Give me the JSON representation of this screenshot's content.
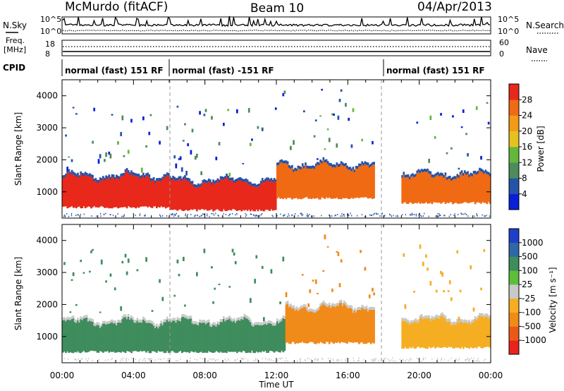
{
  "title": {
    "station": "McMurdo (fitACF)",
    "beam": "Beam 10",
    "date": "04/Apr/2013"
  },
  "panel_labels": {
    "nsky": "N.Sky",
    "nsearch": "N.Search",
    "freq_line1": "Freq.",
    "freq_line2": "[MHz]",
    "nave": "Nave",
    "cpid": "CPID",
    "noise_left_ticks": [
      "10^5",
      "10^0"
    ],
    "noise_right_ticks": [
      "10^5",
      "10^0"
    ],
    "freq_ticks": [
      "18",
      "8"
    ],
    "nave_ticks": [
      "60",
      "0"
    ]
  },
  "cpid_segments": [
    {
      "label": "normal (fast) 151 RF",
      "start_hour": 0,
      "end_hour": 6
    },
    {
      "label": "normal (fast) -151 RF",
      "start_hour": 6,
      "end_hour": 18
    },
    {
      "label": "normal (fast) 151 RF",
      "start_hour": 18,
      "end_hour": 24
    }
  ],
  "time_axis": {
    "label": "Time UT",
    "ticks": [
      "00:00",
      "04:00",
      "08:00",
      "12:00",
      "16:00",
      "20:00",
      "00:00"
    ]
  },
  "range_axis": {
    "label": "Slant Range [km]",
    "ticks": [
      "1000",
      "2000",
      "3000",
      "4000"
    ],
    "ylim": [
      180,
      4500
    ]
  },
  "power_scale": {
    "label": "Power [dB]",
    "ticks": [
      "4",
      "8",
      "12",
      "16",
      "20",
      "24",
      "28"
    ],
    "colors": [
      "#0a1fd8",
      "#2453a8",
      "#4f8a5a",
      "#63b83c",
      "#e6c21e",
      "#f39a18",
      "#f06a14",
      "#e8281a"
    ]
  },
  "velocity_scale": {
    "label": "Velocity [m s⁻¹]",
    "ticks": [
      "1000",
      "500",
      "100",
      "25",
      "-25",
      "-100",
      "-500",
      "-1000"
    ],
    "colors": [
      "#1f3fc8",
      "#2f68a6",
      "#3f8c5c",
      "#5bbf3a",
      "#c9c9c9",
      "#f5ae22",
      "#f08a18",
      "#ea5a16",
      "#e8231c"
    ]
  },
  "chart_data": [
    {
      "type": "heatmap",
      "title": "Power",
      "xlabel": "Time UT",
      "ylabel": "Slant Range [km]",
      "xlim_hours": [
        0,
        24
      ],
      "ylim": [
        180,
        4500
      ],
      "colorbar_label": "Power [dB]",
      "colorbar_ticks": [
        4,
        8,
        12,
        16,
        20,
        24,
        28
      ],
      "regions": [
        {
          "from_hour": 0.0,
          "to_hour": 6.0,
          "range_km": [
            520,
            1450
          ],
          "peak_db": 28
        },
        {
          "from_hour": 6.0,
          "to_hour": 12.0,
          "range_km": [
            420,
            1300
          ],
          "peak_db": 28
        },
        {
          "from_hour": 12.0,
          "to_hour": 17.5,
          "range_km": [
            800,
            1800
          ],
          "peak_db": 24
        },
        {
          "from_hour": 19.0,
          "to_hour": 24.0,
          "range_km": [
            650,
            1500
          ],
          "peak_db": 24
        }
      ]
    },
    {
      "type": "heatmap",
      "title": "Velocity",
      "xlabel": "Time UT",
      "ylabel": "Slant Range [km]",
      "xlim_hours": [
        0,
        24
      ],
      "ylim": [
        180,
        4500
      ],
      "colorbar_label": "Velocity [m s-1]",
      "colorbar_ticks": [
        1000,
        500,
        100,
        25,
        -25,
        -100,
        -500,
        -1000
      ],
      "regions": [
        {
          "from_hour": 0.0,
          "to_hour": 12.5,
          "range_km": [
            520,
            1450
          ],
          "velocity_ms": 100
        },
        {
          "from_hour": 12.5,
          "to_hour": 17.5,
          "range_km": [
            800,
            1900
          ],
          "velocity_ms": -500
        },
        {
          "from_hour": 19.0,
          "to_hour": 24.0,
          "range_km": [
            650,
            1500
          ],
          "velocity_ms": -100
        }
      ]
    }
  ]
}
